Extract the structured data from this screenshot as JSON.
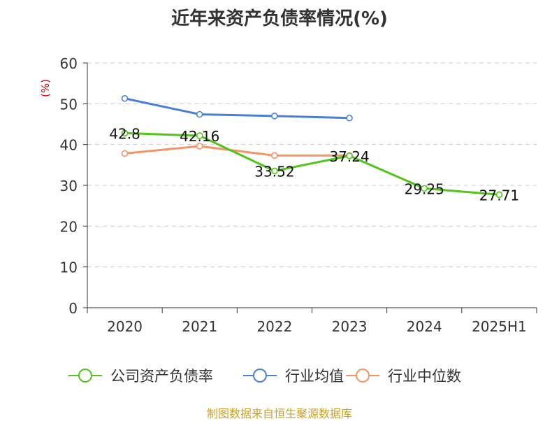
{
  "chart_data": {
    "type": "line",
    "title": "近年来资产负债率情况(%)",
    "ylabel": "(%)",
    "xlabel": "",
    "categories": [
      "2020",
      "2021",
      "2022",
      "2023",
      "2024",
      "2025H1"
    ],
    "ylim": [
      0,
      60
    ],
    "yticks": [
      0,
      10,
      20,
      30,
      40,
      50,
      60
    ],
    "grid": true,
    "legend_position": "bottom",
    "series": [
      {
        "name": "公司资产负债率",
        "color": "#52c41a",
        "values": [
          42.8,
          42.16,
          33.52,
          37.24,
          29.25,
          27.71
        ],
        "labels": [
          "42.8",
          "42.16",
          "33.52",
          "37.24",
          "29.25",
          "27.71"
        ]
      },
      {
        "name": "行业均值",
        "color": "#4a7fd8",
        "values": [
          51.3,
          47.4,
          47.0,
          46.5,
          null,
          null
        ]
      },
      {
        "name": "行业中位数",
        "color": "#f59462",
        "values": [
          37.8,
          39.6,
          37.3,
          37.3,
          null,
          null
        ]
      }
    ]
  },
  "source": "制图数据来自恒生聚源数据库"
}
